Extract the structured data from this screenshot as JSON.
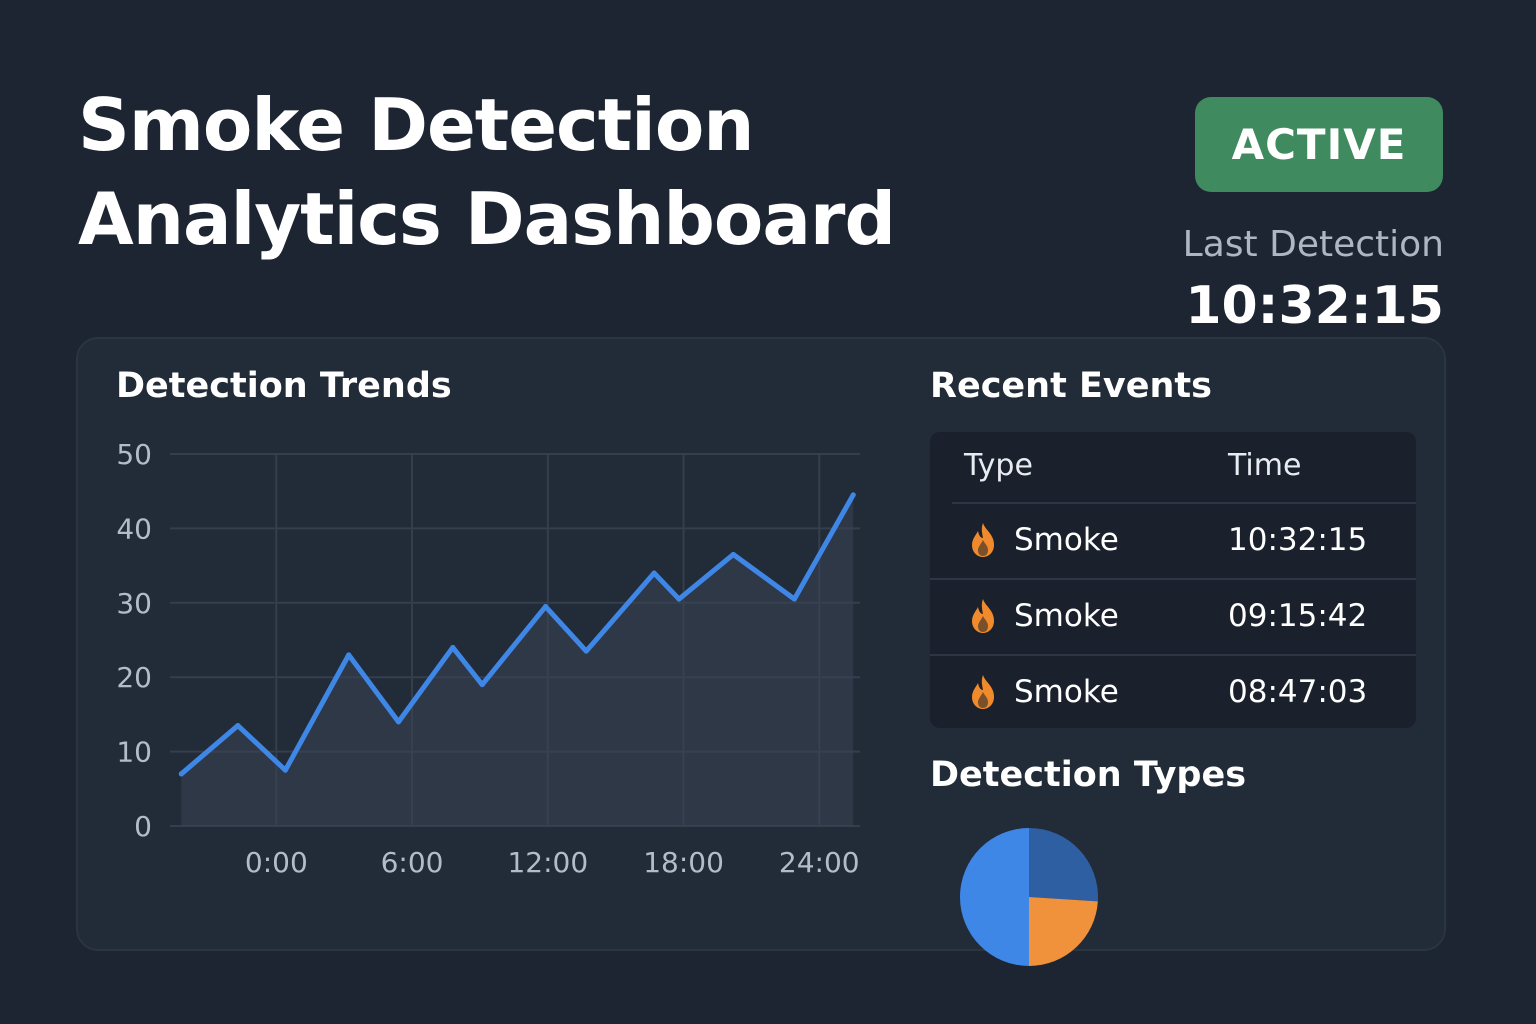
{
  "header": {
    "title_line1": "Smoke Detection",
    "title_line2": "Analytics Dashboard",
    "status": "ACTIVE",
    "last_detection_label": "Last Detection",
    "last_detection_time": "10:32:15"
  },
  "colors": {
    "background": "#1d2532",
    "panel": "#222b38",
    "status_active": "#3f8a5f",
    "line": "#3f87e6",
    "flame": "#f08a2c",
    "pie_blue": "#3f87e6",
    "pie_dark_blue": "#2f5fa3",
    "pie_orange": "#f0923c"
  },
  "trends": {
    "title": "Detection Trends"
  },
  "events": {
    "title": "Recent Events",
    "columns": [
      "Type",
      "Time"
    ],
    "rows": [
      {
        "icon": "flame-icon",
        "type": "Smoke",
        "time": "10:32:15"
      },
      {
        "icon": "flame-icon",
        "type": "Smoke",
        "time": "09:15:42"
      },
      {
        "icon": "flame-icon",
        "type": "Smoke",
        "time": "08:47:03"
      }
    ]
  },
  "types": {
    "title": "Detection Types"
  },
  "chart_data": [
    {
      "type": "line",
      "title": "Detection Trends",
      "xlabel": "",
      "ylabel": "",
      "x_ticks": [
        "0:00",
        "6:00",
        "12:00",
        "18:00",
        "24:00"
      ],
      "x_tick_hours": [
        0,
        6,
        12,
        18,
        24
      ],
      "xlim": [
        -4.7,
        25.8
      ],
      "ylim": [
        0,
        50
      ],
      "y_ticks": [
        0,
        10,
        20,
        30,
        40,
        50
      ],
      "grid": true,
      "area_fill": true,
      "series": [
        {
          "x": [
            -4.2,
            -1.7,
            0.4,
            3.2,
            5.4,
            7.8,
            9.1,
            11.9,
            13.7,
            16.7,
            17.8,
            20.2,
            22.9,
            25.5
          ],
          "y": [
            7,
            13.5,
            7.5,
            23,
            14,
            24,
            19,
            29.5,
            23.5,
            34,
            30.5,
            36.5,
            30.5,
            44.5
          ]
        }
      ]
    },
    {
      "type": "pie",
      "title": "Detection Types",
      "slices": [
        {
          "value": 50,
          "color": "#3f87e6"
        },
        {
          "value": 26,
          "color": "#2f5fa3"
        },
        {
          "value": 24,
          "color": "#f0923c"
        }
      ],
      "slice_order": [
        1,
        2,
        0
      ]
    }
  ]
}
